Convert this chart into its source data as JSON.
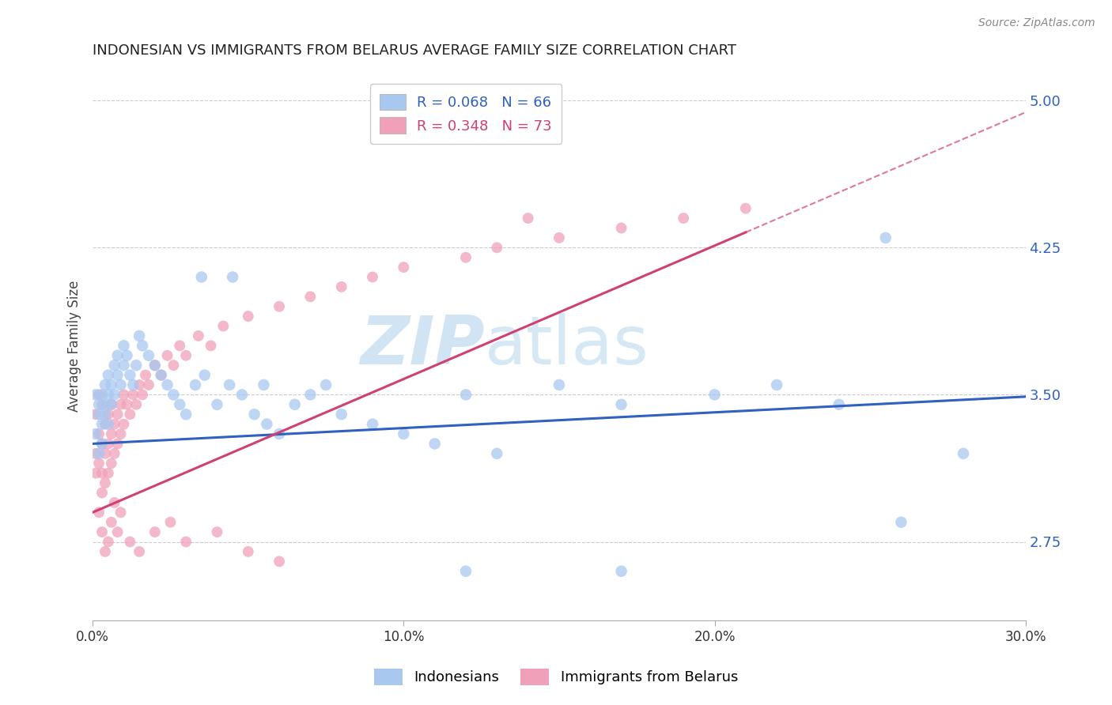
{
  "title": "INDONESIAN VS IMMIGRANTS FROM BELARUS AVERAGE FAMILY SIZE CORRELATION CHART",
  "source": "Source: ZipAtlas.com",
  "ylabel": "Average Family Size",
  "xlim": [
    0.0,
    0.3
  ],
  "ylim": [
    2.35,
    5.15
  ],
  "yticks": [
    2.75,
    3.5,
    4.25,
    5.0
  ],
  "xticks": [
    0.0,
    0.1,
    0.2,
    0.3
  ],
  "xtick_labels": [
    "0.0%",
    "10.0%",
    "20.0%",
    "30.0%"
  ],
  "ytick_labels": [
    "2.75",
    "3.50",
    "4.25",
    "5.00"
  ],
  "legend1_label": "Indonesians",
  "legend2_label": "Immigrants from Belarus",
  "r1": 0.068,
  "n1": 66,
  "r2": 0.348,
  "n2": 73,
  "color1": "#a8c8f0",
  "color2": "#f0a0b8",
  "line1_color": "#3060c0",
  "line2_color": "#d04070",
  "watermark_color": "#d0e4f4",
  "background_color": "#ffffff",
  "title_color": "#222222",
  "ylabel_color": "#444444",
  "ytick_color": "#3060c0",
  "xtick_color": "#333333",
  "grid_color": "#cccccc",
  "indonesians_x": [
    0.001,
    0.001,
    0.002,
    0.002,
    0.002,
    0.003,
    0.003,
    0.003,
    0.004,
    0.004,
    0.004,
    0.005,
    0.005,
    0.005,
    0.006,
    0.006,
    0.007,
    0.007,
    0.008,
    0.008,
    0.009,
    0.01,
    0.01,
    0.011,
    0.012,
    0.013,
    0.014,
    0.015,
    0.016,
    0.018,
    0.02,
    0.022,
    0.024,
    0.026,
    0.028,
    0.03,
    0.033,
    0.036,
    0.04,
    0.044,
    0.048,
    0.052,
    0.056,
    0.06,
    0.065,
    0.07,
    0.075,
    0.08,
    0.09,
    0.1,
    0.11,
    0.12,
    0.13,
    0.15,
    0.17,
    0.2,
    0.22,
    0.24,
    0.26,
    0.28,
    0.035,
    0.045,
    0.055,
    0.12,
    0.17,
    0.255
  ],
  "indonesians_y": [
    3.3,
    3.5,
    3.4,
    3.2,
    3.45,
    3.35,
    3.25,
    3.5,
    3.4,
    3.55,
    3.45,
    3.6,
    3.35,
    3.5,
    3.55,
    3.45,
    3.65,
    3.5,
    3.6,
    3.7,
    3.55,
    3.65,
    3.75,
    3.7,
    3.6,
    3.55,
    3.65,
    3.8,
    3.75,
    3.7,
    3.65,
    3.6,
    3.55,
    3.5,
    3.45,
    3.4,
    3.55,
    3.6,
    3.45,
    3.55,
    3.5,
    3.4,
    3.35,
    3.3,
    3.45,
    3.5,
    3.55,
    3.4,
    3.35,
    3.3,
    3.25,
    3.5,
    3.2,
    3.55,
    3.45,
    3.5,
    3.55,
    3.45,
    2.85,
    3.2,
    4.1,
    4.1,
    3.55,
    2.6,
    2.6,
    4.3
  ],
  "belarus_x": [
    0.001,
    0.001,
    0.001,
    0.002,
    0.002,
    0.002,
    0.003,
    0.003,
    0.003,
    0.003,
    0.004,
    0.004,
    0.004,
    0.005,
    0.005,
    0.005,
    0.006,
    0.006,
    0.006,
    0.007,
    0.007,
    0.008,
    0.008,
    0.009,
    0.009,
    0.01,
    0.01,
    0.011,
    0.012,
    0.013,
    0.014,
    0.015,
    0.016,
    0.017,
    0.018,
    0.02,
    0.022,
    0.024,
    0.026,
    0.028,
    0.03,
    0.034,
    0.038,
    0.042,
    0.05,
    0.06,
    0.07,
    0.08,
    0.09,
    0.1,
    0.12,
    0.13,
    0.15,
    0.17,
    0.19,
    0.21,
    0.002,
    0.003,
    0.004,
    0.005,
    0.006,
    0.007,
    0.008,
    0.009,
    0.012,
    0.015,
    0.02,
    0.025,
    0.03,
    0.04,
    0.05,
    0.06,
    0.14
  ],
  "belarus_y": [
    3.4,
    3.2,
    3.1,
    3.5,
    3.3,
    3.15,
    3.45,
    3.25,
    3.1,
    3.0,
    3.35,
    3.2,
    3.05,
    3.4,
    3.25,
    3.1,
    3.45,
    3.3,
    3.15,
    3.35,
    3.2,
    3.4,
    3.25,
    3.45,
    3.3,
    3.5,
    3.35,
    3.45,
    3.4,
    3.5,
    3.45,
    3.55,
    3.5,
    3.6,
    3.55,
    3.65,
    3.6,
    3.7,
    3.65,
    3.75,
    3.7,
    3.8,
    3.75,
    3.85,
    3.9,
    3.95,
    4.0,
    4.05,
    4.1,
    4.15,
    4.2,
    4.25,
    4.3,
    4.35,
    4.4,
    4.45,
    2.9,
    2.8,
    2.7,
    2.75,
    2.85,
    2.95,
    2.8,
    2.9,
    2.75,
    2.7,
    2.8,
    2.85,
    2.75,
    2.8,
    2.7,
    2.65,
    4.4
  ]
}
